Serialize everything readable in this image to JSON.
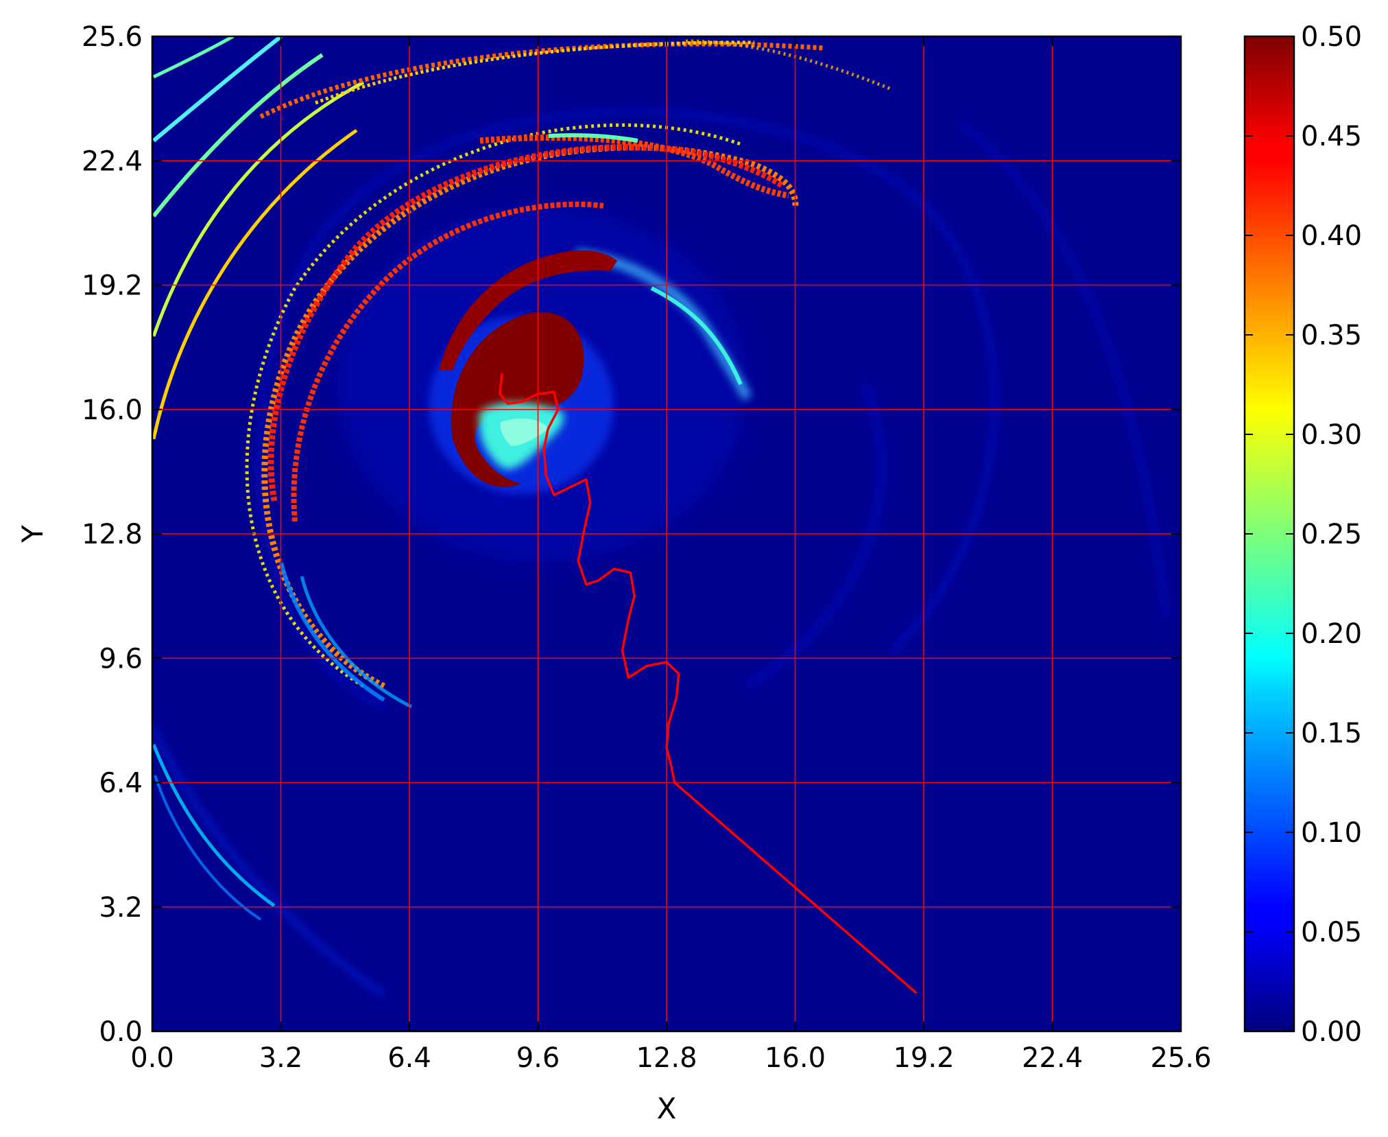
{
  "chart_data": {
    "type": "heatmap",
    "title": "",
    "xlabel": "X",
    "ylabel": "Y",
    "xlim": [
      0.0,
      25.6
    ],
    "ylim": [
      0.0,
      25.6
    ],
    "xticks": [
      "0.0",
      "3.2",
      "6.4",
      "9.6",
      "12.8",
      "16.0",
      "19.2",
      "22.4",
      "25.6"
    ],
    "yticks": [
      "0.0",
      "3.2",
      "6.4",
      "9.6",
      "12.8",
      "16.0",
      "19.2",
      "22.4",
      "25.6"
    ],
    "grid": true,
    "grid_color": "#ff0000",
    "colormap": "jet",
    "colorbar": {
      "range": [
        0.0,
        0.5
      ],
      "ticks": [
        "0.00",
        "0.05",
        "0.10",
        "0.15",
        "0.20",
        "0.25",
        "0.30",
        "0.35",
        "0.40",
        "0.45",
        "0.50"
      ]
    },
    "background_color": "#00008f",
    "features": {
      "spiral_core_center": [
        9.4,
        16.0
      ],
      "spiral_arms": 3
    },
    "trajectory": {
      "color": "#ff0000",
      "points": [
        [
          19.0,
          1.0
        ],
        [
          18.0,
          1.9
        ],
        [
          17.0,
          2.8
        ],
        [
          16.0,
          3.7
        ],
        [
          15.0,
          4.6
        ],
        [
          14.0,
          5.5
        ],
        [
          13.0,
          6.4
        ],
        [
          12.9,
          6.9
        ],
        [
          12.8,
          7.3
        ],
        [
          12.85,
          7.9
        ],
        [
          13.05,
          8.6
        ],
        [
          13.1,
          9.2
        ],
        [
          12.8,
          9.5
        ],
        [
          12.3,
          9.4
        ],
        [
          11.85,
          9.1
        ],
        [
          11.7,
          9.8
        ],
        [
          11.85,
          10.6
        ],
        [
          12.0,
          11.2
        ],
        [
          11.9,
          11.8
        ],
        [
          11.5,
          11.9
        ],
        [
          11.1,
          11.6
        ],
        [
          10.8,
          11.5
        ],
        [
          10.6,
          12.1
        ],
        [
          10.75,
          12.9
        ],
        [
          10.9,
          13.6
        ],
        [
          10.8,
          14.2
        ],
        [
          10.4,
          14.0
        ],
        [
          10.0,
          13.8
        ],
        [
          9.8,
          14.3
        ],
        [
          9.75,
          15.0
        ],
        [
          9.85,
          15.5
        ],
        [
          10.1,
          16.0
        ],
        [
          10.0,
          16.45
        ],
        [
          9.6,
          16.4
        ],
        [
          9.2,
          16.2
        ],
        [
          8.85,
          16.15
        ],
        [
          8.65,
          16.4
        ],
        [
          8.7,
          16.9
        ]
      ]
    }
  }
}
